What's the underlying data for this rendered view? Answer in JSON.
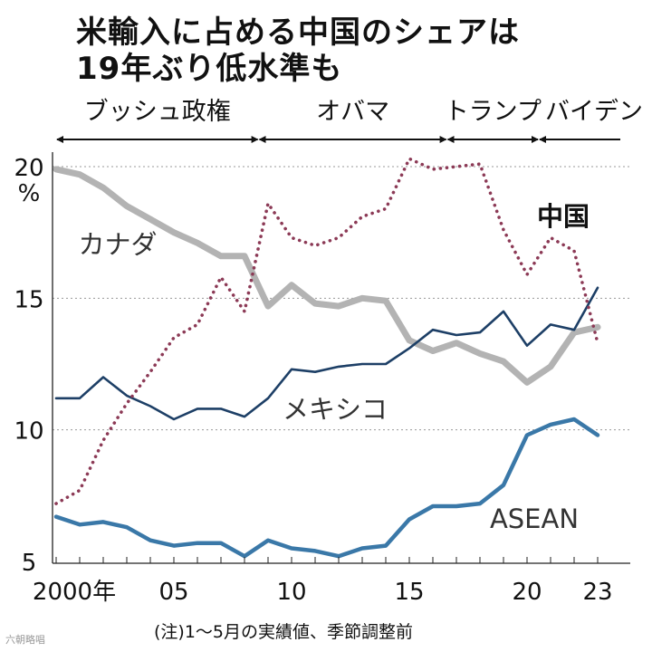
{
  "title": {
    "line1": "米輸入に占める中国のシェアは",
    "line2": "19年ぶり低水準も"
  },
  "footnote": "(注)1～5月の実績値、季節調整前",
  "watermark": "六朝略唱",
  "eras": [
    {
      "label": "ブッシュ政権",
      "from": 2000.0,
      "to": 2008.6
    },
    {
      "label": "オバマ",
      "from": 2008.6,
      "to": 2016.6
    },
    {
      "label": "トランプ",
      "from": 2016.6,
      "to": 2020.5
    },
    {
      "label": "バイデン",
      "from": 2020.5,
      "to": 2024.0
    }
  ],
  "chart_data": {
    "type": "line",
    "x": [
      2000,
      2001,
      2002,
      2003,
      2004,
      2005,
      2006,
      2007,
      2008,
      2009,
      2010,
      2011,
      2012,
      2013,
      2014,
      2015,
      2016,
      2017,
      2018,
      2019,
      2020,
      2021,
      2022,
      2023
    ],
    "xticks": [
      2000,
      2005,
      2010,
      2015,
      2020,
      2023
    ],
    "xtick_labels": [
      "2000年",
      "05",
      "10",
      "15",
      "20",
      "23"
    ],
    "yticks": [
      5,
      10,
      15,
      20
    ],
    "ytick_labels": [
      "5",
      "10",
      "15",
      "20"
    ],
    "ylim": [
      5,
      20
    ],
    "yunit": "%",
    "grid": true,
    "series": [
      {
        "name": "中国",
        "style": "dotted",
        "color": "#8c3a56",
        "values": [
          7.2,
          7.7,
          9.6,
          11.0,
          12.2,
          13.5,
          14.0,
          15.8,
          14.5,
          18.6,
          17.3,
          17.0,
          17.3,
          18.1,
          18.4,
          20.3,
          19.9,
          20.0,
          20.1,
          17.6,
          15.9,
          17.3,
          16.8,
          13.3
        ],
        "label_color": "#111111"
      },
      {
        "name": "カナダ",
        "style": "thick",
        "color": "#b3b3b3",
        "values": [
          19.9,
          19.7,
          19.2,
          18.5,
          18.0,
          17.5,
          17.1,
          16.6,
          16.6,
          14.7,
          15.5,
          14.8,
          14.7,
          15.0,
          14.9,
          13.4,
          13.0,
          13.3,
          12.9,
          12.6,
          11.8,
          12.4,
          13.7,
          13.9
        ],
        "label_color": "#333333"
      },
      {
        "name": "メキシコ",
        "style": "solid",
        "color": "#1d3f66",
        "values": [
          11.2,
          11.2,
          12.0,
          11.3,
          10.9,
          10.4,
          10.8,
          10.8,
          10.5,
          11.2,
          12.3,
          12.2,
          12.4,
          12.5,
          12.5,
          13.1,
          13.8,
          13.6,
          13.7,
          14.5,
          13.2,
          14.0,
          13.8,
          15.4
        ],
        "label_color": "#333333"
      },
      {
        "name": "ASEAN",
        "style": "medium",
        "color": "#3a78a8",
        "values": [
          6.7,
          6.4,
          6.5,
          6.3,
          5.8,
          5.6,
          5.7,
          5.7,
          5.2,
          5.8,
          5.5,
          5.4,
          5.2,
          5.5,
          5.6,
          6.6,
          7.1,
          7.1,
          7.2,
          7.9,
          9.8,
          10.2,
          10.4,
          9.8
        ],
        "label_color": "#333333"
      }
    ]
  }
}
